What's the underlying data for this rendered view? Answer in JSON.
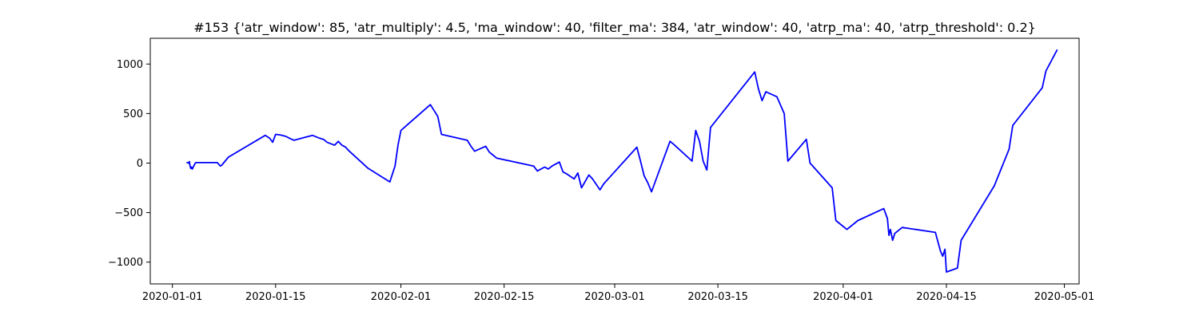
{
  "chart_data": {
    "type": "line",
    "title": "#153 {'atr_window': 85, 'atr_multiply': 4.5, 'ma_window': 40, 'filter_ma': 384, 'atr_window': 40, 'atrp_ma': 40, 'atrp_threshold': 0.2}",
    "xlabel": "",
    "ylabel": "",
    "x_axis_type": "date",
    "xlim": [
      "2019-12-29",
      "2020-05-03"
    ],
    "ylim": [
      -1220,
      1260
    ],
    "grid": false,
    "line_color": "#0000ff",
    "x_ticks": [
      {
        "value": "2020-01-01",
        "label": "2020-01-01"
      },
      {
        "value": "2020-01-15",
        "label": "2020-01-15"
      },
      {
        "value": "2020-02-01",
        "label": "2020-02-01"
      },
      {
        "value": "2020-02-15",
        "label": "2020-02-15"
      },
      {
        "value": "2020-03-01",
        "label": "2020-03-01"
      },
      {
        "value": "2020-03-15",
        "label": "2020-03-15"
      },
      {
        "value": "2020-04-01",
        "label": "2020-04-01"
      },
      {
        "value": "2020-04-15",
        "label": "2020-04-15"
      },
      {
        "value": "2020-05-01",
        "label": "2020-05-01"
      }
    ],
    "y_ticks": [
      {
        "value": 1000,
        "label": "1000"
      },
      {
        "value": 500,
        "label": "500"
      },
      {
        "value": 0,
        "label": "0"
      },
      {
        "value": -500,
        "label": "−500"
      },
      {
        "value": -1000,
        "label": "−1000"
      }
    ],
    "series": [
      {
        "x": [
          "2020-01-03 00:00",
          "2020-01-03 04:48",
          "2020-01-03 07:12",
          "2020-01-03 09:36",
          "2020-01-03 12:00",
          "2020-01-03 14:24",
          "2020-01-03 16:48",
          "2020-01-03 21:36",
          "2020-01-04 02:24",
          "2020-01-04 04:48",
          "2020-01-07 02:24",
          "2020-01-07 12:00",
          "2020-01-07 16:48",
          "2020-01-08 14:24",
          "2020-01-13 14:24",
          "2020-01-14 04:48",
          "2020-01-14 14:24",
          "2020-01-15 00:00",
          "2020-01-15 14:24",
          "2020-01-16 09:36",
          "2020-01-16 21:36",
          "2020-01-17 12:00",
          "2020-01-20 00:00",
          "2020-01-21 00:00",
          "2020-01-21 12:00",
          "2020-01-22 00:00",
          "2020-01-23 00:00",
          "2020-01-23 12:00",
          "2020-01-24 00:00",
          "2020-01-24 12:00",
          "2020-01-25 00:00",
          "2020-01-27 12:00",
          "2020-01-30 12:00",
          "2020-01-31 04:48",
          "2020-01-31 14:24",
          "2020-02-01 00:00",
          "2020-02-05 00:00",
          "2020-02-05 12:00",
          "2020-02-06 00:00",
          "2020-02-06 12:00",
          "2020-02-10 00:00",
          "2020-02-10 12:00",
          "2020-02-11 00:00",
          "2020-02-12 12:00",
          "2020-02-13 00:00",
          "2020-02-13 12:00",
          "2020-02-14 00:00",
          "2020-02-19 00:00",
          "2020-02-19 12:00",
          "2020-02-20 00:00",
          "2020-02-20 12:00",
          "2020-02-21 00:00",
          "2020-02-21 12:00",
          "2020-02-22 12:00",
          "2020-02-23 00:00",
          "2020-02-23 12:00",
          "2020-02-24 12:00",
          "2020-02-25 00:00",
          "2020-02-25 12:00",
          "2020-02-26 12:00",
          "2020-02-27 00:00",
          "2020-02-28 00:00",
          "2020-02-28 12:00",
          "2020-03-04 00:00",
          "2020-03-04 12:00",
          "2020-03-05 00:00",
          "2020-03-05 12:00",
          "2020-03-06 00:00",
          "2020-03-08 12:00",
          "2020-03-09 00:00",
          "2020-03-11 12:00",
          "2020-03-12 00:00",
          "2020-03-12 12:00",
          "2020-03-13 00:00",
          "2020-03-13 12:00",
          "2020-03-14 00:00",
          "2020-03-20 00:00",
          "2020-03-20 12:00",
          "2020-03-21 00:00",
          "2020-03-21 12:00",
          "2020-03-23 00:00",
          "2020-03-24 00:00",
          "2020-03-24 12:00",
          "2020-03-27 00:00",
          "2020-03-27 12:00",
          "2020-03-30 12:00",
          "2020-03-31 00:00",
          "2020-04-01 12:00",
          "2020-04-03 00:00",
          "2020-04-06 12:00",
          "2020-04-07 00:00",
          "2020-04-07 04:48",
          "2020-04-07 09:36",
          "2020-04-07 16:48",
          "2020-04-08 00:00",
          "2020-04-09 00:00",
          "2020-04-13 12:00",
          "2020-04-14 04:48",
          "2020-04-14 12:00",
          "2020-04-14 19:12",
          "2020-04-15 00:00",
          "2020-04-16 12:00",
          "2020-04-17 00:00",
          "2020-04-21 12:00",
          "2020-04-23 12:00",
          "2020-04-24 00:00",
          "2020-04-28 00:00",
          "2020-04-28 12:00",
          "2020-04-30 00:00"
        ],
        "y": [
          5,
          0,
          15,
          -30,
          -55,
          -40,
          -60,
          -30,
          0,
          5,
          5,
          -30,
          -20,
          60,
          280,
          250,
          210,
          290,
          285,
          270,
          250,
          230,
          280,
          250,
          240,
          210,
          180,
          220,
          180,
          160,
          120,
          -50,
          -190,
          -30,
          180,
          330,
          590,
          530,
          470,
          290,
          230,
          170,
          120,
          170,
          110,
          80,
          50,
          -30,
          -80,
          -60,
          -40,
          -60,
          -30,
          10,
          -90,
          -110,
          -160,
          -100,
          -250,
          -120,
          -160,
          -270,
          -210,
          160,
          20,
          -130,
          -200,
          -290,
          220,
          190,
          20,
          330,
          220,
          20,
          -70,
          360,
          920,
          750,
          630,
          720,
          670,
          500,
          20,
          240,
          0,
          -250,
          -580,
          -670,
          -580,
          -460,
          -560,
          -730,
          -670,
          -780,
          -710,
          -650,
          -700,
          -890,
          -940,
          -870,
          -1100,
          -1060,
          -780,
          -230,
          140,
          380,
          760,
          930,
          1140
        ]
      }
    ]
  }
}
